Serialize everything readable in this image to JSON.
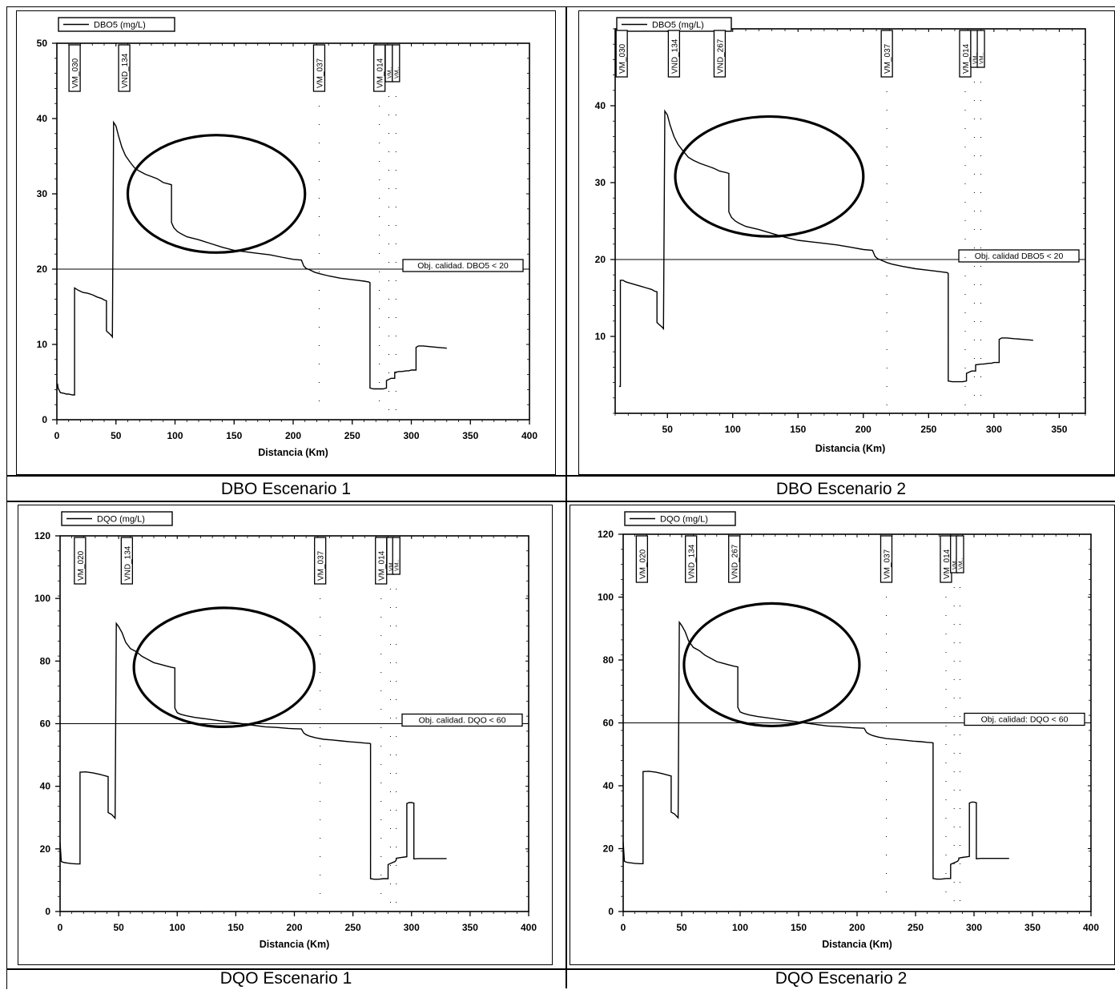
{
  "captions": {
    "c1": "DBO Escenario 1",
    "c2": "DBO Escenario 2",
    "c3": "DQO Escenario 1",
    "c4": "DQO Escenario 2"
  },
  "chart_data": [
    {
      "id": "dbo1",
      "type": "line",
      "title": "",
      "xlabel": "Distancia (Km)",
      "ylabel": "",
      "xlim": [
        0,
        400
      ],
      "ylim": [
        0,
        50
      ],
      "xticks": [
        0,
        50,
        100,
        150,
        200,
        250,
        300,
        350,
        400
      ],
      "yticks": [
        0,
        10,
        20,
        30,
        40,
        50
      ],
      "grid": false,
      "legend": "top-left",
      "series": [
        {
          "name": "DBO5 (mg/L)",
          "x": [
            0,
            0.5,
            1,
            3,
            6,
            8,
            10,
            13,
            15,
            15,
            18,
            22,
            26,
            30,
            34,
            38,
            40,
            42,
            42,
            44,
            46,
            47,
            47,
            48,
            50,
            52,
            55,
            58,
            62,
            66,
            70,
            75,
            80,
            85,
            90,
            95,
            97,
            97,
            99,
            102,
            105,
            110,
            120,
            130,
            140,
            150,
            160,
            170,
            180,
            190,
            200,
            207,
            209,
            211,
            214,
            218,
            222,
            230,
            240,
            250,
            255,
            260,
            264,
            265,
            265,
            268,
            272,
            276,
            279,
            279,
            283,
            286,
            286,
            290,
            292,
            296,
            298,
            298,
            300,
            302,
            304,
            304,
            306,
            310,
            316,
            323,
            330
          ],
          "y": [
            4.5,
            4.8,
            4.2,
            3.6,
            3.5,
            3.4,
            3.4,
            3.3,
            3.3,
            17.5,
            17.2,
            16.9,
            16.8,
            16.6,
            16.3,
            16.1,
            15.9,
            15.8,
            11.8,
            11.5,
            11.2,
            11.0,
            11.0,
            39.5,
            39.0,
            37.8,
            36.2,
            35.1,
            34.2,
            33.4,
            33.0,
            32.6,
            32.3,
            32.0,
            31.5,
            31.3,
            31.2,
            26.2,
            25.5,
            25.0,
            24.7,
            24.3,
            23.9,
            23.4,
            22.9,
            22.5,
            22.3,
            22.1,
            21.9,
            21.6,
            21.3,
            21.2,
            20.4,
            20.1,
            19.9,
            19.6,
            19.4,
            19.1,
            18.8,
            18.6,
            18.5,
            18.4,
            18.3,
            18.2,
            4.2,
            4.1,
            4.1,
            4.1,
            4.2,
            5.2,
            5.5,
            5.5,
            6.3,
            6.4,
            6.4,
            6.5,
            6.5,
            6.5,
            6.6,
            6.6,
            6.6,
            9.6,
            9.8,
            9.8,
            9.7,
            9.6,
            9.5
          ]
        }
      ],
      "threshold": {
        "y": 20,
        "label": "Obj. calidad. DBO5 < 20"
      },
      "stations": [
        {
          "label": "VM_030",
          "x": 15
        },
        {
          "label": "VND_134",
          "x": 57
        },
        {
          "label": "VM_037",
          "x": 222
        },
        {
          "label": "VM_014",
          "x": 273
        },
        {
          "label": "VM..",
          "x": 281
        },
        {
          "label": "VM..",
          "x": 287
        }
      ],
      "ellipse": {
        "cx": 135,
        "cy": 30,
        "rx": 75,
        "ry": 7.8
      }
    },
    {
      "id": "dbo2",
      "type": "line",
      "title": "",
      "xlabel": "Distancia (Km)",
      "ylabel": "",
      "xlim": [
        10,
        370
      ],
      "ylim": [
        0,
        50
      ],
      "xticks": [
        50,
        100,
        150,
        200,
        250,
        300,
        350
      ],
      "yticks": [
        10,
        20,
        30,
        40
      ],
      "grid": false,
      "legend": "top-left",
      "series": [
        {
          "name": "DBO5 (mg/L)",
          "x": [
            13,
            14,
            14,
            16,
            18,
            22,
            26,
            30,
            34,
            38,
            40,
            42,
            42,
            44,
            46,
            47,
            47,
            48,
            50,
            52,
            55,
            58,
            62,
            66,
            70,
            75,
            80,
            85,
            90,
            95,
            97,
            97,
            99,
            102,
            105,
            110,
            120,
            130,
            140,
            150,
            160,
            170,
            180,
            190,
            200,
            207,
            209,
            211,
            214,
            218,
            222,
            230,
            240,
            250,
            255,
            260,
            264,
            265,
            265,
            268,
            272,
            276,
            279,
            279,
            283,
            286,
            286,
            290,
            292,
            296,
            298,
            298,
            300,
            302,
            304,
            304,
            306,
            310,
            316,
            323,
            330
          ],
          "y": [
            3.5,
            3.5,
            17.3,
            17.3,
            17.1,
            16.9,
            16.7,
            16.5,
            16.3,
            16.1,
            15.9,
            15.8,
            11.8,
            11.5,
            11.2,
            11.0,
            11.0,
            39.3,
            38.8,
            37.5,
            36.0,
            35.0,
            34.1,
            33.3,
            32.9,
            32.5,
            32.2,
            31.9,
            31.5,
            31.3,
            31.2,
            26.2,
            25.5,
            25.0,
            24.7,
            24.3,
            23.9,
            23.4,
            22.9,
            22.5,
            22.3,
            22.1,
            21.9,
            21.6,
            21.3,
            21.2,
            20.4,
            20.1,
            19.9,
            19.6,
            19.4,
            19.1,
            18.8,
            18.6,
            18.5,
            18.4,
            18.3,
            18.2,
            4.2,
            4.1,
            4.1,
            4.1,
            4.2,
            5.2,
            5.5,
            5.5,
            6.3,
            6.4,
            6.4,
            6.5,
            6.5,
            6.5,
            6.6,
            6.6,
            6.6,
            9.6,
            9.8,
            9.8,
            9.7,
            9.6,
            9.5
          ]
        }
      ],
      "threshold": {
        "y": 20,
        "label": "Obj. calidad  DBO5 < 20"
      },
      "stations": [
        {
          "label": "VM_030",
          "x": 15
        },
        {
          "label": "VND_134",
          "x": 55
        },
        {
          "label": "VND_267",
          "x": 90
        },
        {
          "label": "VM_037",
          "x": 218
        },
        {
          "label": "VM_014",
          "x": 278
        },
        {
          "label": "VM..",
          "x": 285
        },
        {
          "label": "VM..",
          "x": 290
        }
      ],
      "ellipse": {
        "cx": 128,
        "cy": 30.8,
        "rx": 72,
        "ry": 7.8
      }
    },
    {
      "id": "dqo1",
      "type": "line",
      "title": "",
      "xlabel": "Distancia (Km)",
      "ylabel": "",
      "xlim": [
        0,
        400
      ],
      "ylim": [
        0,
        120
      ],
      "xticks": [
        0,
        50,
        100,
        150,
        200,
        250,
        300,
        350,
        400
      ],
      "yticks": [
        0,
        20,
        40,
        60,
        80,
        100,
        120
      ],
      "grid": false,
      "legend": "top-left",
      "series": [
        {
          "name": "DQO (mg/L)",
          "x": [
            0,
            1,
            2,
            4,
            6,
            10,
            14,
            16,
            17,
            17,
            22,
            28,
            34,
            40,
            41,
            41,
            44,
            46,
            47,
            47,
            48,
            50,
            53,
            56,
            60,
            65,
            70,
            75,
            80,
            85,
            90,
            95,
            98,
            98,
            100,
            103,
            108,
            115,
            125,
            135,
            145,
            155,
            165,
            175,
            185,
            195,
            200,
            206,
            208,
            210,
            213,
            218,
            225,
            232,
            240,
            248,
            255,
            260,
            264,
            265,
            265,
            268,
            272,
            276,
            280,
            280,
            283,
            286,
            287,
            287,
            290,
            294,
            296,
            296,
            298,
            300,
            302,
            302,
            306,
            310,
            318,
            325,
            330
          ],
          "y": [
            22,
            16,
            15.8,
            15.6,
            15.5,
            15.3,
            15.2,
            15.2,
            15.2,
            44.5,
            44.6,
            44.3,
            43.8,
            43.2,
            43.1,
            31.6,
            31.0,
            30.2,
            29.8,
            29.8,
            92,
            91,
            89,
            86,
            84,
            83,
            81.5,
            80.5,
            79.5,
            79,
            78.5,
            78,
            77.8,
            65,
            63.5,
            63,
            62.5,
            62,
            61.5,
            61,
            60.5,
            60,
            59.5,
            59,
            58.8,
            58.5,
            58.4,
            58.3,
            57,
            56.5,
            56,
            55.5,
            55,
            54.8,
            54.5,
            54.2,
            54,
            53.8,
            53.7,
            53.6,
            10.5,
            10.3,
            10.3,
            10.5,
            10.5,
            15,
            15.5,
            16,
            16.5,
            17,
            17.2,
            17.4,
            17.5,
            34.5,
            34.8,
            34.8,
            34.6,
            16.8,
            16.9,
            16.9,
            16.9,
            16.9,
            16.9
          ]
        }
      ],
      "threshold": {
        "y": 60,
        "label": "Obj. calidad. DQO < 60"
      },
      "stations": [
        {
          "label": "VM_020",
          "x": 17
        },
        {
          "label": "VND_134",
          "x": 57
        },
        {
          "label": "VM_037",
          "x": 222
        },
        {
          "label": "VM_014",
          "x": 274
        },
        {
          "label": "VM..",
          "x": 282
        },
        {
          "label": "VM..",
          "x": 287
        }
      ],
      "ellipse": {
        "cx": 140,
        "cy": 78,
        "rx": 77,
        "ry": 19
      }
    },
    {
      "id": "dqo2",
      "type": "line",
      "title": "",
      "xlabel": "Distancia (Km)",
      "ylabel": "",
      "xlim": [
        0,
        400
      ],
      "ylim": [
        0,
        120
      ],
      "xticks": [
        0,
        50,
        100,
        150,
        200,
        250,
        300,
        350,
        400
      ],
      "yticks": [
        0,
        20,
        40,
        60,
        80,
        100,
        120
      ],
      "grid": false,
      "legend": "top-left",
      "series": [
        {
          "name": "DQO (mg/L)",
          "x": [
            0,
            1,
            2,
            4,
            6,
            10,
            14,
            16,
            17,
            17,
            22,
            28,
            34,
            40,
            41,
            41,
            44,
            46,
            47,
            47,
            48,
            50,
            53,
            56,
            60,
            65,
            70,
            75,
            80,
            85,
            90,
            95,
            98,
            98,
            100,
            103,
            108,
            115,
            125,
            135,
            145,
            155,
            165,
            175,
            185,
            195,
            200,
            206,
            208,
            210,
            213,
            218,
            225,
            232,
            240,
            248,
            255,
            260,
            264,
            265,
            265,
            268,
            272,
            276,
            280,
            280,
            283,
            286,
            287,
            287,
            290,
            294,
            296,
            296,
            298,
            300,
            302,
            302,
            306,
            310,
            318,
            325,
            330
          ],
          "y": [
            22,
            16,
            15.8,
            15.6,
            15.5,
            15.3,
            15.2,
            15.2,
            15.2,
            44.5,
            44.6,
            44.3,
            43.8,
            43.2,
            43.1,
            31.6,
            31.0,
            30.2,
            29.8,
            29.8,
            92,
            91,
            89,
            86,
            84,
            83,
            81.5,
            80.5,
            79.5,
            79,
            78.5,
            78,
            77.8,
            65,
            63.5,
            63,
            62.5,
            62,
            61.5,
            61,
            60.5,
            60,
            59.5,
            59,
            58.8,
            58.5,
            58.4,
            58.3,
            57,
            56.5,
            56,
            55.5,
            55,
            54.8,
            54.5,
            54.2,
            54,
            53.8,
            53.7,
            53.6,
            10.5,
            10.3,
            10.3,
            10.5,
            10.5,
            15,
            15.5,
            16,
            16.5,
            17,
            17.2,
            17.4,
            17.5,
            34.5,
            34.8,
            34.8,
            34.6,
            16.8,
            16.9,
            16.9,
            16.9,
            16.9,
            16.9
          ]
        }
      ],
      "threshold": {
        "y": 60,
        "label": "Obj. calidad: DQO < 60"
      },
      "stations": [
        {
          "label": "VM_020",
          "x": 16
        },
        {
          "label": "VND_134",
          "x": 58
        },
        {
          "label": "VND_267",
          "x": 95
        },
        {
          "label": "VM_037",
          "x": 225
        },
        {
          "label": "VM_014",
          "x": 276
        },
        {
          "label": "VM..",
          "x": 283
        },
        {
          "label": "VM..",
          "x": 288
        }
      ],
      "ellipse": {
        "cx": 127,
        "cy": 78.5,
        "rx": 75,
        "ry": 19.5
      }
    }
  ]
}
